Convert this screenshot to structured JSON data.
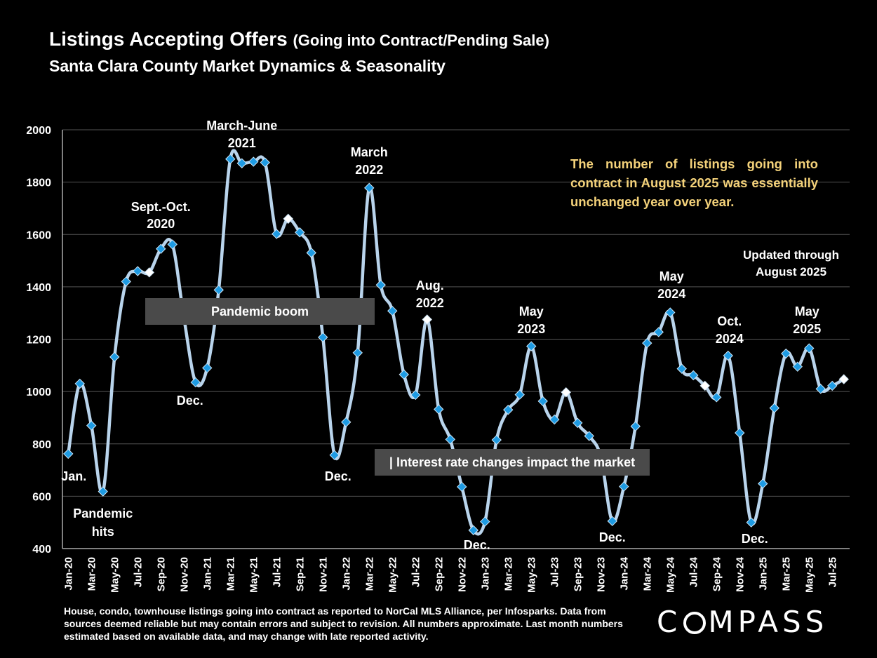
{
  "title": "Listings Accepting Offers",
  "title_suffix": "(Going into Contract/Pending Sale)",
  "subtitle": "Santa Clara County Market Dynamics & Seasonality",
  "note": "The number of listings going into contract in August 2025 was essentially unchanged year over year.",
  "updated": "Updated through August 2025",
  "bands": {
    "pandemic": "Pandemic boom",
    "interest": "| Interest rate changes impact the market"
  },
  "footnote": "House, condo, townhouse listings going into contract as reported to NorCal MLS Alliance, per Infosparks. Data from sources deemed reliable but may contain errors and subject to revision. All numbers approximate. Last month numbers estimated based on available data, and may change with late reported activity.",
  "logo": "COMPASS",
  "colors": {
    "line": "#b9d4ec",
    "marker": "#1e9be3",
    "highlight": "#ffffff",
    "note": "#f4d27a",
    "band": "#4a4a4a",
    "grid": "#555555"
  },
  "chart_data": {
    "type": "line",
    "ylim": [
      400,
      2000
    ],
    "yticks": [
      400,
      600,
      800,
      1000,
      1200,
      1400,
      1600,
      1800,
      2000
    ],
    "grid": true,
    "x": [
      "Jan-20",
      "Feb-20",
      "Mar-20",
      "Apr-20",
      "May-20",
      "Jun-20",
      "Jul-20",
      "Aug-20",
      "Sep-20",
      "Oct-20",
      "Nov-20",
      "Dec-20",
      "Jan-21",
      "Feb-21",
      "Mar-21",
      "Apr-21",
      "May-21",
      "Jun-21",
      "Jul-21",
      "Aug-21",
      "Sep-21",
      "Oct-21",
      "Nov-21",
      "Dec-21",
      "Jan-22",
      "Feb-22",
      "Mar-22",
      "Apr-22",
      "May-22",
      "Jun-22",
      "Jul-22",
      "Aug-22",
      "Sep-22",
      "Oct-22",
      "Nov-22",
      "Dec-22",
      "Jan-23",
      "Feb-23",
      "Mar-23",
      "Apr-23",
      "May-23",
      "Jun-23",
      "Jul-23",
      "Aug-23",
      "Sep-23",
      "Oct-23",
      "Nov-23",
      "Dec-23",
      "Jan-24",
      "Feb-24",
      "Mar-24",
      "Apr-24",
      "May-24",
      "Jun-24",
      "Jul-24",
      "Aug-24",
      "Sep-24",
      "Oct-24",
      "Nov-24",
      "Dec-24",
      "Jan-25",
      "Feb-25",
      "Mar-25",
      "Apr-25",
      "May-25",
      "Jun-25",
      "Jul-25",
      "Aug-25"
    ],
    "x_tick_labels": [
      "Jan-20",
      "Mar-20",
      "May-20",
      "Jul-20",
      "Sep-20",
      "Nov-20",
      "Jan-21",
      "Mar-21",
      "May-21",
      "Jul-21",
      "Sep-21",
      "Nov-21",
      "Jan-22",
      "Mar-22",
      "May-22",
      "Jul-22",
      "Sep-22",
      "Nov-22",
      "Jan-23",
      "Mar-23",
      "May-23",
      "Jul-23",
      "Sep-23",
      "Nov-23",
      "Jan-24",
      "Mar-24",
      "May-24",
      "Jul-24",
      "Sep-24",
      "Nov-24",
      "Jan-25",
      "Mar-25",
      "May-25",
      "Jul-25"
    ],
    "series": [
      {
        "values": [
          762,
          1030,
          870,
          618,
          1132,
          1420,
          1460,
          1455,
          1545,
          1562,
          1280,
          1035,
          1090,
          1388,
          1888,
          1872,
          1878,
          1875,
          1602,
          1660,
          1608,
          1530,
          1207,
          757,
          883,
          1148,
          1778,
          1407,
          1308,
          1065,
          987,
          1275,
          932,
          817,
          636,
          470,
          503,
          815,
          930,
          988,
          1173,
          963,
          893,
          997,
          880,
          830,
          752,
          505,
          637,
          867,
          1185,
          1227,
          1302,
          1087,
          1062,
          1022,
          978,
          1137,
          842,
          500,
          648,
          937,
          1145,
          1095,
          1165,
          1010,
          1022,
          1047
        ],
        "highlight_indices": [
          7,
          19,
          31,
          43,
          55,
          67
        ]
      }
    ],
    "annotations": [
      {
        "text": "Jan.",
        "x": "Jan-20"
      },
      {
        "text": "Pandemic hits",
        "x": "Apr-20"
      },
      {
        "text": "Sept.-Oct. 2020",
        "x": "Sep-20"
      },
      {
        "text": "Dec.",
        "x": "Dec-20"
      },
      {
        "text": "March-June 2021",
        "x": "Apr-21"
      },
      {
        "text": "Dec.",
        "x": "Dec-21"
      },
      {
        "text": "March 2022",
        "x": "Mar-22"
      },
      {
        "text": "Aug. 2022",
        "x": "Aug-22"
      },
      {
        "text": "Dec.",
        "x": "Dec-22"
      },
      {
        "text": "May 2023",
        "x": "May-23"
      },
      {
        "text": "Dec.",
        "x": "Dec-23"
      },
      {
        "text": "May 2024",
        "x": "May-24"
      },
      {
        "text": "Oct. 2024",
        "x": "Oct-24"
      },
      {
        "text": "Dec.",
        "x": "Dec-24"
      },
      {
        "text": "May 2025",
        "x": "May-25"
      }
    ]
  }
}
